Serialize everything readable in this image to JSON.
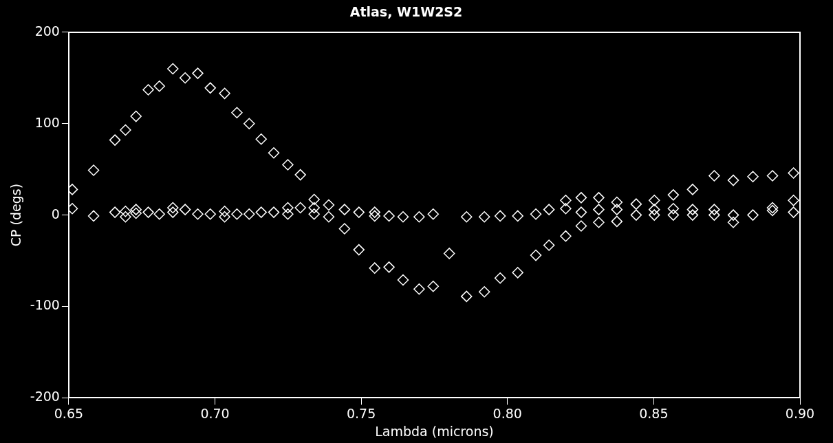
{
  "chart_data": {
    "type": "scatter",
    "title": "Atlas, W1W2S2",
    "xlabel": "Lambda (microns)",
    "ylabel": "CP (degs)",
    "xlim": [
      0.65,
      0.9
    ],
    "xticks": [
      0.65,
      {
        "value": 0.7,
        "label": "0.70"
      },
      0.75,
      {
        "value": 0.8,
        "label": "0.80"
      },
      0.85,
      {
        "value": 0.9,
        "label": "0.90"
      }
    ],
    "ylim": [
      -200,
      200
    ],
    "yticks": [
      -200,
      -100,
      0,
      100,
      200
    ],
    "grid": false,
    "legend": false,
    "marker": "diamond",
    "series": [
      {
        "color": "#ffffff",
        "x": [
          0.6512,
          0.6585,
          0.6658,
          0.6694,
          0.673,
          0.6772,
          0.681,
          0.6856,
          0.6898,
          0.6941,
          0.6984,
          0.7033,
          0.7075,
          0.7117,
          0.7158,
          0.7201,
          0.7249,
          0.7292,
          0.7339,
          0.7443,
          0.7492,
          0.7546,
          0.7595,
          0.7643,
          0.7698,
          0.7746,
          0.7801,
          0.786,
          0.7921,
          0.7975,
          0.8035,
          0.8097,
          0.8142,
          0.8199,
          0.8252,
          0.8312,
          0.8374,
          0.844,
          0.8502,
          0.8567,
          0.8633,
          0.8707,
          0.8772,
          0.8839,
          0.8906,
          0.8978
        ],
        "values": [
          28,
          49,
          82,
          93,
          108,
          137,
          141,
          160,
          150,
          155,
          139,
          133,
          112,
          100,
          83,
          68,
          55,
          44,
          17,
          -15,
          -38,
          -58,
          -57,
          -71,
          -81,
          -78,
          -42,
          -89,
          -84,
          -69,
          -63,
          -44,
          -33,
          -23,
          -12,
          -8,
          -7,
          12,
          16,
          22,
          28,
          43,
          38,
          42,
          43,
          46
        ]
      },
      {
        "color": "#ffffff",
        "x": [
          0.6512,
          0.6585,
          0.6658,
          0.6694,
          0.6694,
          0.673,
          0.673,
          0.6772,
          0.681,
          0.6856,
          0.6856,
          0.6898,
          0.6941,
          0.6984,
          0.7033,
          0.7033,
          0.7075,
          0.7117,
          0.7158,
          0.7201,
          0.7249,
          0.7249,
          0.7292,
          0.7339,
          0.7339,
          0.7389,
          0.7389,
          0.7443,
          0.7492,
          0.7546,
          0.7546,
          0.7595,
          0.7643,
          0.7698,
          0.7746,
          0.786,
          0.7921,
          0.7975,
          0.8035,
          0.8097,
          0.8142,
          0.8199,
          0.8199,
          0.8252,
          0.8252,
          0.8312,
          0.8312,
          0.8374,
          0.8374,
          0.844,
          0.8502,
          0.8502,
          0.8567,
          0.8567,
          0.8633,
          0.8633,
          0.8707,
          0.8707,
          0.8772,
          0.8772,
          0.8839,
          0.8906,
          0.8906,
          0.8978,
          0.8978
        ],
        "values": [
          7,
          -1,
          3,
          4,
          -2,
          6,
          2,
          3,
          1,
          8,
          3,
          6,
          1,
          1,
          4,
          -2,
          1,
          1,
          3,
          3,
          8,
          1,
          8,
          8,
          1,
          11,
          -2,
          6,
          3,
          3,
          -1,
          -1,
          -2,
          -2,
          1,
          -2,
          -2,
          -1,
          -1,
          1,
          6,
          16,
          7,
          19,
          3,
          19,
          6,
          14,
          6,
          0,
          6,
          0,
          7,
          0,
          6,
          0,
          6,
          0,
          0,
          -8,
          0,
          8,
          5,
          16,
          3
        ]
      }
    ]
  }
}
